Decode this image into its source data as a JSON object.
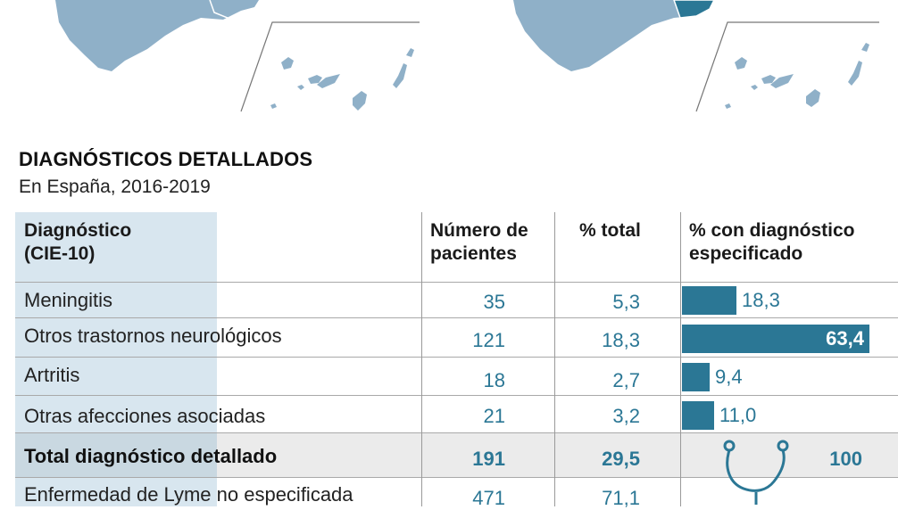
{
  "title": "DIAGNÓSTICOS DETALLADOS",
  "subtitle": "En España, 2016-2019",
  "colors": {
    "accent": "#2b7795",
    "map_fill": "#8fb0c8",
    "map_highlight": "#2b7795",
    "first_col_bg": "#d8e6ef",
    "total_row_bg": "#ebebeb"
  },
  "table": {
    "headers": [
      "Diagnóstico\n(CIE-10)",
      "Número de\npacientes",
      "% total",
      "% con diagnóstico\nespecificado"
    ],
    "rows": [
      {
        "label": "Meningitis",
        "pacientes": "35",
        "pct_total": "5,3",
        "pct_especificado": "18,3"
      },
      {
        "label": "Otros trastornos neurológicos",
        "pacientes": "121",
        "pct_total": "18,3",
        "pct_especificado": "63,4"
      },
      {
        "label": "Artritis",
        "pacientes": "18",
        "pct_total": "2,7",
        "pct_especificado": "9,4"
      },
      {
        "label": "Otras afecciones asociadas",
        "pacientes": "21",
        "pct_total": "3,2",
        "pct_especificado": "11,0"
      }
    ],
    "total": {
      "label": "Total diagnóstico detallado",
      "pacientes": "191",
      "pct_total": "29,5",
      "pct_especificado": "100",
      "icon": "stethoscope-icon"
    },
    "last": {
      "label": "Enfermedad de Lyme no especificada",
      "pacientes": "471",
      "pct_total": "71,1"
    }
  },
  "chart_data": {
    "type": "bar",
    "categories": [
      "Meningitis",
      "Otros trastornos neurológicos",
      "Artritis",
      "Otras afecciones asociadas"
    ],
    "values": [
      18.3,
      63.4,
      9.4,
      11.0
    ],
    "title": "",
    "xlabel": "",
    "ylabel": "% con diagnóstico especificado",
    "ylim": [
      0,
      63.4
    ]
  }
}
